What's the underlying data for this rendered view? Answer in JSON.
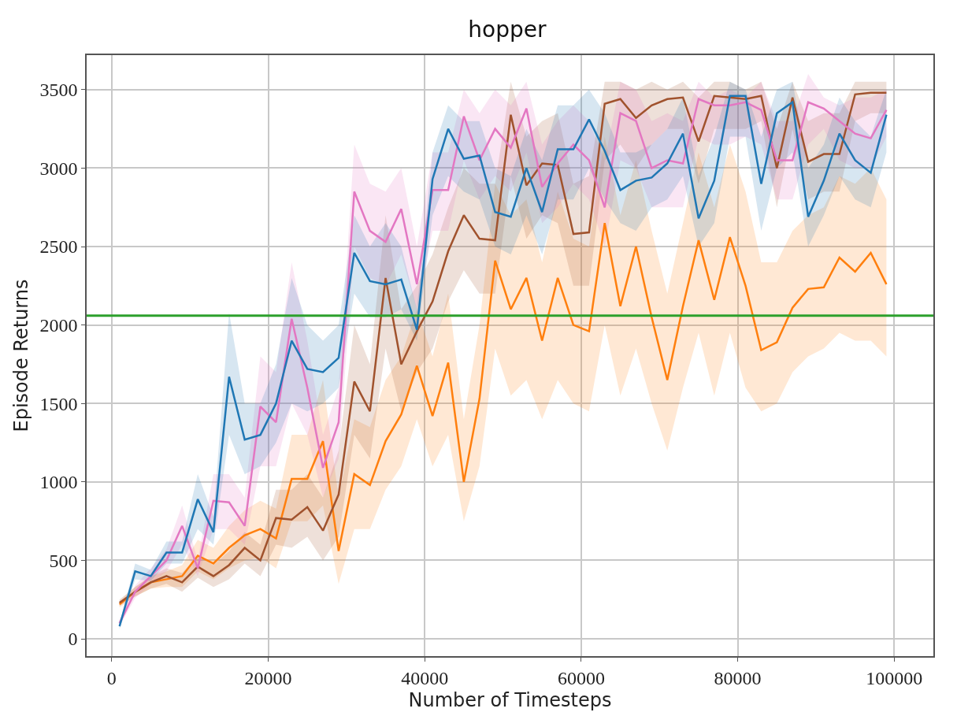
{
  "chart_data": {
    "type": "line",
    "title": "hopper",
    "xlabel": "Number of Timesteps",
    "ylabel": "Episode Returns",
    "x": [
      1000,
      3000,
      5000,
      7000,
      9000,
      11000,
      13000,
      15000,
      17000,
      19000,
      21000,
      23000,
      25000,
      27000,
      29000,
      31000,
      33000,
      35000,
      37000,
      39000,
      41000,
      43000,
      45000,
      47000,
      49000,
      51000,
      53000,
      55000,
      57000,
      59000,
      61000,
      63000,
      65000,
      67000,
      69000,
      71000,
      73000,
      75000,
      77000,
      79000,
      81000,
      83000,
      85000,
      87000,
      89000,
      91000,
      93000,
      95000,
      97000,
      99000
    ],
    "series": [
      {
        "color": "#ff7f0e",
        "values": [
          220,
          300,
          360,
          380,
          400,
          530,
          480,
          580,
          660,
          700,
          640,
          1020,
          1020,
          1260,
          560,
          1050,
          980,
          1260,
          1430,
          1740,
          1420,
          1760,
          1000,
          1530,
          2410,
          2100,
          2300,
          1900,
          2300,
          2000,
          1960,
          2650,
          2120,
          2500,
          2050,
          1650,
          2120,
          2540,
          2160,
          2560,
          2250,
          1840,
          1890,
          2110,
          2230,
          2240,
          2430,
          2340,
          2460,
          2260
        ],
        "lower": [
          200,
          270,
          320,
          330,
          330,
          430,
          380,
          450,
          500,
          520,
          450,
          750,
          750,
          850,
          350,
          700,
          700,
          950,
          1100,
          1400,
          1100,
          1300,
          750,
          1100,
          1850,
          1550,
          1650,
          1400,
          1650,
          1500,
          1450,
          2000,
          1550,
          1850,
          1500,
          1200,
          1600,
          1950,
          1550,
          1950,
          1600,
          1450,
          1500,
          1700,
          1800,
          1850,
          1950,
          1900,
          1900,
          1800
        ],
        "upper": [
          240,
          330,
          400,
          430,
          470,
          630,
          580,
          720,
          820,
          880,
          830,
          1300,
          1300,
          1650,
          900,
          1400,
          1350,
          1650,
          1800,
          2100,
          1800,
          2200,
          1400,
          2000,
          2900,
          2700,
          2800,
          2400,
          2850,
          2550,
          2500,
          3200,
          2700,
          3050,
          2600,
          2200,
          2650,
          3100,
          2750,
          3150,
          2850,
          2400,
          2400,
          2600,
          2700,
          2750,
          2950,
          2900,
          3000,
          2800
        ]
      },
      {
        "color": "#a0522d",
        "values": [
          230,
          300,
          360,
          400,
          360,
          460,
          400,
          470,
          580,
          500,
          770,
          760,
          840,
          690,
          920,
          1640,
          1450,
          2300,
          1750,
          1960,
          2150,
          2470,
          2700,
          2550,
          2540,
          3340,
          2890,
          3030,
          3020,
          2580,
          2590,
          3410,
          3440,
          3320,
          3400,
          3440,
          3450,
          3170,
          3460,
          3450,
          3440,
          3460,
          3000,
          3450,
          3040,
          3090,
          3090,
          3470,
          3480,
          3480
        ],
        "lower": [
          210,
          270,
          320,
          350,
          300,
          390,
          330,
          380,
          480,
          400,
          600,
          580,
          650,
          500,
          650,
          1300,
          1150,
          1850,
          1450,
          1700,
          1850,
          2150,
          2350,
          2200,
          2200,
          2950,
          2550,
          2700,
          2650,
          2250,
          2250,
          3050,
          3150,
          3000,
          3150,
          3250,
          3250,
          2900,
          3250,
          3250,
          3250,
          3300,
          2750,
          3250,
          2800,
          2850,
          2850,
          3300,
          3350,
          3350
        ],
        "upper": [
          250,
          330,
          400,
          450,
          420,
          530,
          470,
          560,
          680,
          600,
          950,
          950,
          1050,
          900,
          1200,
          2000,
          1750,
          2700,
          2100,
          2250,
          2450,
          2750,
          3000,
          2900,
          2900,
          3550,
          3200,
          3300,
          3350,
          2900,
          2950,
          3550,
          3550,
          3500,
          3550,
          3500,
          3550,
          3450,
          3550,
          3550,
          3500,
          3550,
          3250,
          3550,
          3300,
          3350,
          3350,
          3550,
          3550,
          3550
        ]
      },
      {
        "color": "#e377c2",
        "values": [
          100,
          300,
          400,
          500,
          720,
          450,
          880,
          870,
          720,
          1480,
          1380,
          2040,
          1600,
          1090,
          1380,
          2850,
          2600,
          2530,
          2740,
          2260,
          2860,
          2860,
          3330,
          3050,
          3250,
          3130,
          3380,
          2880,
          3030,
          3150,
          3050,
          2750,
          3350,
          3300,
          3000,
          3050,
          3030,
          3440,
          3400,
          3400,
          3420,
          3370,
          3050,
          3050,
          3420,
          3380,
          3300,
          3220,
          3190,
          3370
        ],
        "lower": [
          80,
          260,
          350,
          430,
          600,
          400,
          700,
          700,
          600,
          1100,
          1100,
          1500,
          1300,
          900,
          1150,
          2500,
          2300,
          2250,
          2450,
          2100,
          2600,
          2600,
          3050,
          2800,
          2950,
          2850,
          3100,
          2650,
          2750,
          2900,
          2800,
          2500,
          3050,
          3000,
          2750,
          2750,
          2750,
          3200,
          3150,
          3150,
          3200,
          3150,
          2800,
          2800,
          3150,
          3250,
          3050,
          3000,
          3000,
          3200
        ],
        "upper": [
          120,
          340,
          450,
          570,
          850,
          500,
          1050,
          1050,
          900,
          1800,
          1700,
          2400,
          1900,
          1300,
          1600,
          3150,
          2900,
          2850,
          3000,
          2500,
          3100,
          3100,
          3500,
          3350,
          3500,
          3400,
          3550,
          3150,
          3300,
          3400,
          3300,
          3050,
          3550,
          3500,
          3300,
          3350,
          3300,
          3550,
          3450,
          3500,
          3450,
          3550,
          3300,
          3300,
          3600,
          3450,
          3400,
          3450,
          3450,
          3500
        ]
      },
      {
        "color": "#1f77b4",
        "values": [
          80,
          430,
          400,
          550,
          550,
          890,
          680,
          1670,
          1270,
          1300,
          1500,
          1900,
          1720,
          1700,
          1790,
          2460,
          2280,
          2260,
          2290,
          1970,
          2930,
          3250,
          3060,
          3080,
          2720,
          2690,
          3000,
          2720,
          3120,
          3120,
          3310,
          3110,
          2860,
          2920,
          2940,
          3030,
          3220,
          2680,
          2920,
          3460,
          3460,
          2900,
          3350,
          3420,
          2690,
          2920,
          3220,
          3050,
          2970,
          3340
        ],
        "lower": [
          60,
          380,
          370,
          480,
          480,
          700,
          600,
          1300,
          1050,
          1100,
          1250,
          1500,
          1450,
          1500,
          1600,
          2200,
          2050,
          2050,
          2100,
          1900,
          2700,
          2950,
          2850,
          2800,
          2500,
          2450,
          2700,
          2450,
          2800,
          2800,
          3000,
          2800,
          2650,
          2600,
          2750,
          2800,
          2950,
          2500,
          2650,
          3200,
          3200,
          2600,
          3000,
          3100,
          2500,
          2700,
          2950,
          2800,
          2750,
          3100
        ],
        "upper": [
          100,
          480,
          440,
          620,
          620,
          1050,
          780,
          2080,
          1500,
          1500,
          1750,
          2300,
          2000,
          1900,
          2000,
          2700,
          2500,
          2650,
          2500,
          2100,
          3100,
          3400,
          3300,
          3300,
          3000,
          2950,
          3250,
          3050,
          3400,
          3400,
          3500,
          3350,
          3100,
          3100,
          3150,
          3250,
          3450,
          2950,
          3200,
          3550,
          3500,
          3200,
          3500,
          3550,
          3000,
          3150,
          3450,
          3300,
          3200,
          3500
        ]
      }
    ],
    "ref_lines": [
      {
        "axis": "y",
        "value": 2060,
        "color": "#2ca02c"
      }
    ],
    "xlim": [
      -3200,
      105000
    ],
    "xticks": [
      0,
      20000,
      40000,
      60000,
      80000,
      100000
    ],
    "ylim": [
      -110,
      3720
    ],
    "yticks": [
      0,
      500,
      1000,
      1500,
      2000,
      2500,
      3000,
      3500
    ],
    "grid": true
  }
}
